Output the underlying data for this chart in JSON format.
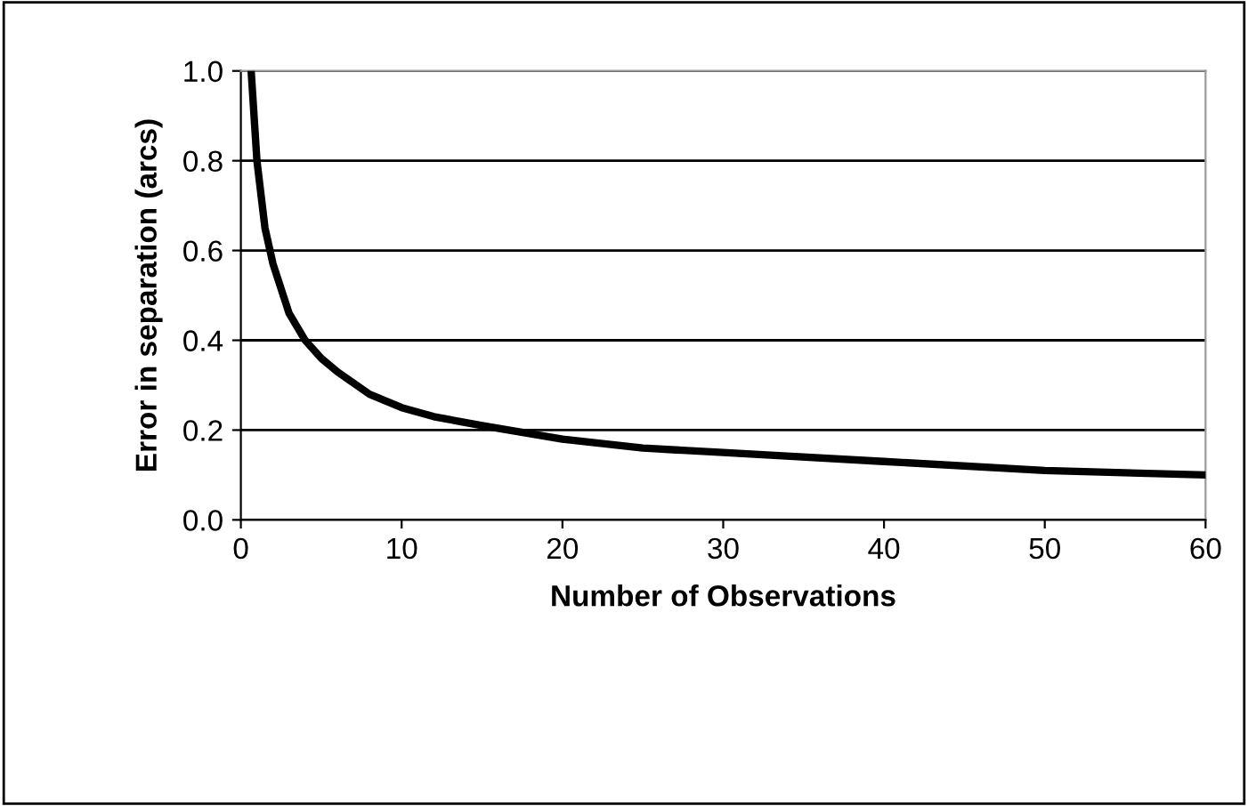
{
  "chart_data": {
    "type": "line",
    "xlabel": "Number of Observations",
    "ylabel": "Error in separation (arcs)",
    "series": [
      {
        "color": "#000000",
        "x": [
          0.64,
          1,
          1.5,
          2,
          3,
          4,
          5,
          6,
          8,
          10,
          12,
          15,
          20,
          25,
          30,
          40,
          50,
          60
        ],
        "values": [
          1.0,
          0.8,
          0.65,
          0.57,
          0.46,
          0.4,
          0.36,
          0.33,
          0.28,
          0.25,
          0.23,
          0.21,
          0.18,
          0.16,
          0.15,
          0.13,
          0.11,
          0.1
        ]
      }
    ],
    "xlim": [
      0,
      60
    ],
    "xticks": [
      0,
      10,
      20,
      30,
      40,
      50,
      60
    ],
    "ylim": [
      0,
      1.0
    ],
    "yticks": [
      {
        "value": 0,
        "label": "0.0"
      },
      {
        "value": 0.2,
        "label": "0.2"
      },
      {
        "value": 0.4,
        "label": "0.4"
      },
      {
        "value": 0.6,
        "label": "0.6"
      },
      {
        "value": 0.8,
        "label": "0.8"
      },
      {
        "value": 1.0,
        "label": "1.0"
      }
    ],
    "grid": "y",
    "marker": "none",
    "line_style": "solid"
  }
}
